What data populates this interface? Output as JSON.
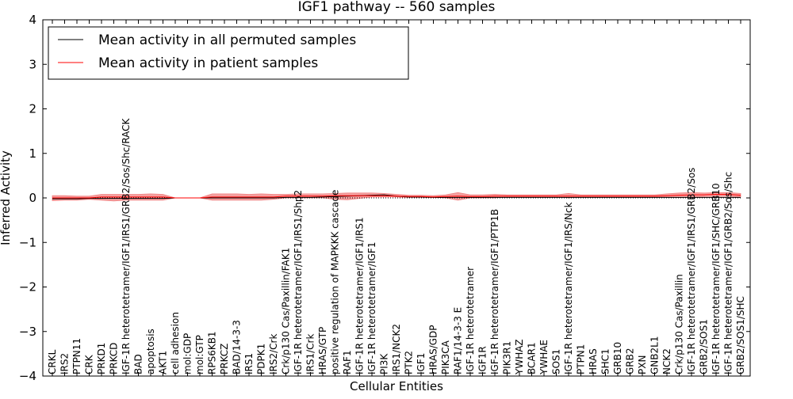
{
  "chart_data": {
    "type": "line",
    "title": "IGF1 pathway -- 560 samples",
    "xlabel": "Cellular Entities",
    "ylabel": "Inferred Activity",
    "ylim": [
      -4,
      4
    ],
    "yticks": [
      "−4",
      "−3",
      "−2",
      "−1",
      "0",
      "1",
      "2",
      "3",
      "4"
    ],
    "grid": false,
    "legend_position": "top-left",
    "categories": [
      "CRKL",
      "IRS2",
      "PTPN11",
      "CRK",
      "PRKD1",
      "PRKCD",
      "IGF-1R heterotetramer/IGF1/IRS1/GRB2/Sos/Shc/RACK",
      "BAD",
      "apoptosis",
      "AKT1",
      "cell adhesion",
      "mol:GDP",
      "mol:GTP",
      "RPS6KB1",
      "PRKCZ",
      "BAD/14-3-3",
      "IRS1",
      "PDPK1",
      "IRS2/Crk",
      "Crk/p130 Cas/Paxillin/FAK1",
      "IGF-1R heterotetramer/IGF1/IRS1/Shp2",
      "IRS1/Crk",
      "HRAS/GTP",
      "positive regulation of MAPKKK cascade",
      "RAF1",
      "IGF-1R heterotetramer/IGF1/IRS1",
      "IGF-1R heterotetramer/IGF1",
      "PI3K",
      "IRS1/NCK2",
      "PTK2",
      "IGF1",
      "HRAS/GDP",
      "PIK3CA",
      "RAF1/14-3-3 E",
      "IGF-1R heterotetramer",
      "IGF1R",
      "IGF-1R heterotetramer/IGF1/PTP1B",
      "PIK3R1",
      "YWHAZ",
      "BCAR1",
      "YWHAE",
      "SOS1",
      "IGF-1R heterotetramer/IGF1/IRS/Nck",
      "PTPN1",
      "HRAS",
      "SHC1",
      "GRB10",
      "GRB2",
      "PXN",
      "GNB2L1",
      "NCK2",
      "Crk/p130 Cas/Paxillin",
      "IGF-1R heterotetramer/IGF1/IRS1/GRB2/Sos",
      "GRB2/SOS1",
      "IGF-1R heterotetramer/IGF1/SHC/GRB10",
      "IGF-1R heterotetramer/IGF1/GRB2/Sos/Shc",
      "GRB2/SOS1/SHC"
    ],
    "series": [
      {
        "name": "Mean activity in all permuted samples",
        "color": "#000000",
        "values": [
          -0.02,
          -0.02,
          -0.02,
          -0.01,
          -0.01,
          -0.01,
          -0.01,
          -0.01,
          -0.01,
          -0.01,
          0.0,
          0.0,
          0.0,
          0.0,
          0.0,
          0.0,
          0.0,
          0.0,
          0.0,
          0.01,
          0.01,
          0.01,
          0.02,
          0.03,
          0.04,
          0.05,
          0.06,
          0.07,
          0.04,
          0.02,
          0.02,
          0.01,
          0.01,
          0.01,
          0.01,
          0.01,
          0.01,
          0.01,
          0.01,
          0.01,
          0.01,
          0.01,
          0.01,
          0.01,
          0.01,
          0.01,
          0.01,
          0.01,
          0.01,
          0.01,
          0.01,
          0.01,
          0.01,
          0.01,
          0.01,
          0.01,
          0.01
        ]
      },
      {
        "name": "Mean activity in patient samples",
        "color": "#ff0000",
        "band_color": "#f08080",
        "values": [
          0.0,
          0.0,
          0.0,
          0.0,
          0.02,
          0.02,
          0.02,
          0.02,
          0.02,
          0.02,
          0.0,
          0.0,
          0.0,
          0.02,
          0.02,
          0.02,
          0.02,
          0.02,
          0.02,
          0.04,
          0.04,
          0.04,
          0.04,
          0.05,
          0.05,
          0.05,
          0.05,
          0.05,
          0.04,
          0.03,
          0.03,
          0.02,
          0.03,
          0.04,
          0.03,
          0.03,
          0.04,
          0.04,
          0.04,
          0.04,
          0.04,
          0.04,
          0.04,
          0.04,
          0.04,
          0.04,
          0.04,
          0.04,
          0.04,
          0.04,
          0.05,
          0.06,
          0.07,
          0.07,
          0.08,
          0.08,
          0.06
        ],
        "band_lower": [
          -0.06,
          -0.05,
          -0.05,
          -0.03,
          -0.05,
          -0.07,
          -0.05,
          -0.05,
          -0.05,
          -0.05,
          0.0,
          0.0,
          0.0,
          -0.05,
          -0.05,
          -0.05,
          -0.05,
          -0.05,
          -0.03,
          0.0,
          0.0,
          0.0,
          0.0,
          -0.03,
          -0.04,
          -0.01,
          0.02,
          0.02,
          0.02,
          0.01,
          0.01,
          0.01,
          0.0,
          -0.05,
          0.0,
          0.0,
          0.0,
          0.02,
          0.02,
          0.02,
          0.02,
          0.02,
          0.0,
          0.02,
          0.02,
          0.02,
          0.02,
          0.02,
          0.02,
          0.02,
          0.01,
          0.01,
          0.02,
          0.03,
          0.04,
          0.04,
          0.02
        ],
        "band_upper": [
          0.05,
          0.05,
          0.04,
          0.04,
          0.08,
          0.08,
          0.08,
          0.08,
          0.09,
          0.08,
          0.0,
          0.0,
          0.0,
          0.09,
          0.09,
          0.09,
          0.08,
          0.09,
          0.08,
          0.08,
          0.09,
          0.09,
          0.09,
          0.1,
          0.11,
          0.11,
          0.11,
          0.1,
          0.08,
          0.06,
          0.06,
          0.05,
          0.07,
          0.12,
          0.07,
          0.07,
          0.08,
          0.07,
          0.07,
          0.07,
          0.07,
          0.07,
          0.1,
          0.07,
          0.07,
          0.07,
          0.07,
          0.07,
          0.07,
          0.07,
          0.09,
          0.11,
          0.12,
          0.11,
          0.12,
          0.12,
          0.1
        ]
      }
    ],
    "reference_line": 0
  }
}
